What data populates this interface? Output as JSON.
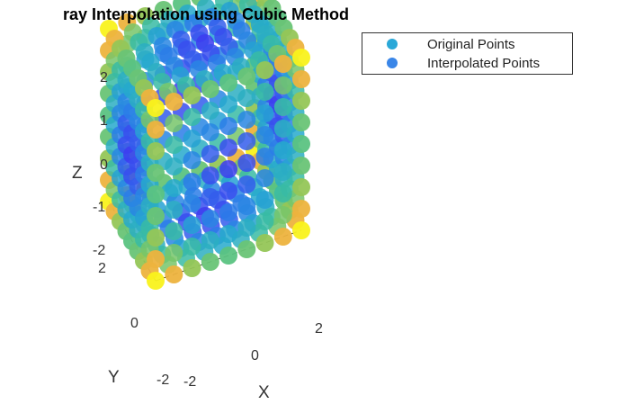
{
  "chart_data": {
    "type": "scatter3d",
    "title": "ray Interpolation using Cubic Method",
    "xlabel": "X",
    "ylabel": "Y",
    "zlabel": "Z",
    "xlim": [
      -2,
      2
    ],
    "ylim": [
      -2,
      2
    ],
    "zlim": [
      -2,
      2
    ],
    "x_ticks": [
      "-2",
      "0",
      "2"
    ],
    "y_ticks": [
      "-2",
      "0",
      "2"
    ],
    "z_ticks": [
      "-2",
      "-1",
      "0",
      "1",
      "2"
    ],
    "legend_position": "top-right",
    "series": [
      {
        "name": "Original Points",
        "color": "#2aa8d8"
      },
      {
        "name": "Interpolated Points",
        "color": "#3a86e8"
      }
    ],
    "colormap": [
      "#3d3cf0",
      "#2a7ee8",
      "#25a8cf",
      "#3cbf9c",
      "#8bc85a",
      "#f5b13c",
      "#f9f21c"
    ]
  }
}
